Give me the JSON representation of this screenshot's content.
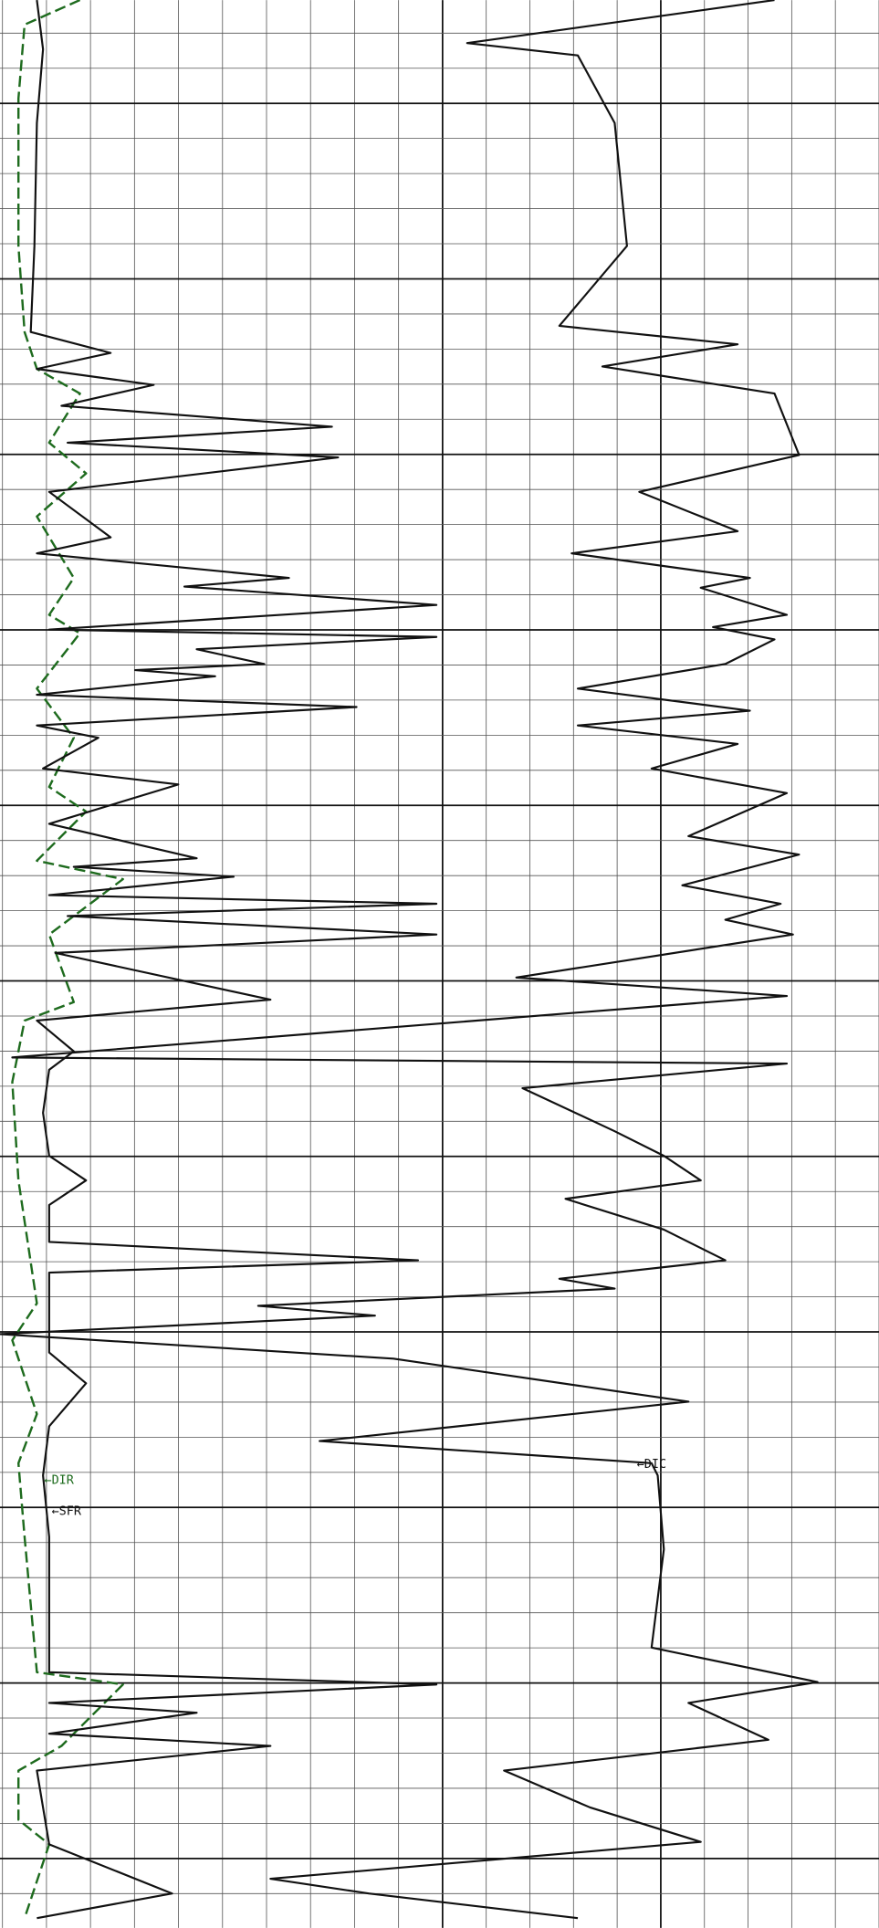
{
  "labels": {
    "dir": "←DIR",
    "sfr": "←SFR",
    "dic": "←DIC"
  }
}
